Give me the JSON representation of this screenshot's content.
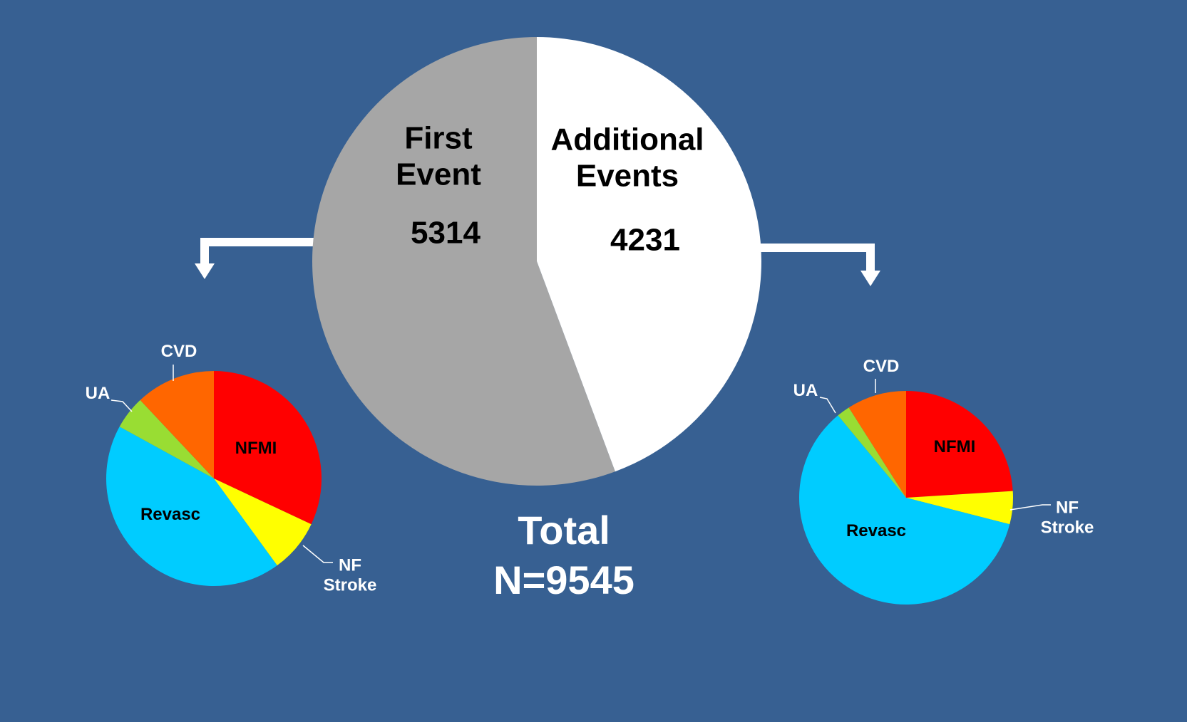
{
  "chart_data": [
    {
      "type": "pie",
      "direction": "counterclockwise",
      "categories": [
        "First Event",
        "Additional Events"
      ],
      "values": [
        5314,
        4231
      ],
      "colors": [
        "#a6a6a6",
        "#ffffff"
      ],
      "annotations": [
        "Total",
        "N=9545"
      ]
    },
    {
      "type": "pie",
      "direction": "clockwise",
      "categories": [
        "NFMI",
        "NF Stroke",
        "Revasc",
        "UA",
        "CVD"
      ],
      "values": [
        32,
        8,
        43,
        5,
        12
      ],
      "colors": [
        "#ff0000",
        "#ffff00",
        "#00ccff",
        "#99dd33",
        "#ff6600"
      ]
    },
    {
      "type": "pie",
      "direction": "clockwise",
      "categories": [
        "NFMI",
        "NF Stroke",
        "Revasc",
        "UA",
        "CVD"
      ],
      "values": [
        24,
        5,
        60,
        2,
        9
      ],
      "colors": [
        "#ff0000",
        "#ffff00",
        "#00ccff",
        "#99dd33",
        "#ff6600"
      ]
    }
  ]
}
